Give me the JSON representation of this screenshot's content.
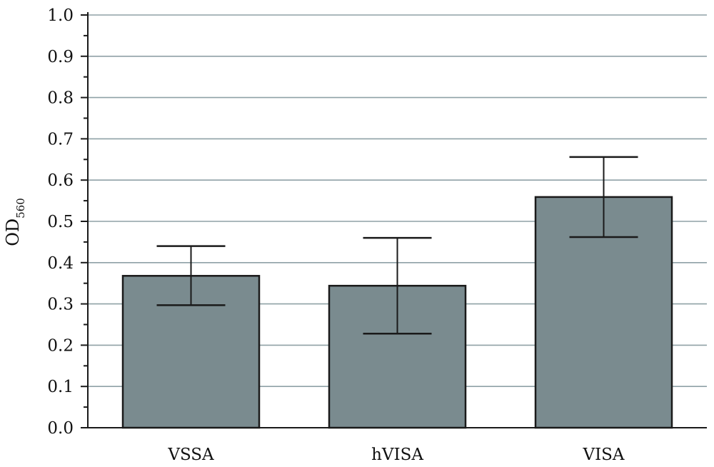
{
  "chart_data": {
    "type": "bar",
    "categories": [
      "VSSA",
      "hVISA",
      "VISA"
    ],
    "values": [
      0.368,
      0.344,
      0.559
    ],
    "error": [
      {
        "low": 0.297,
        "high": 0.44
      },
      {
        "low": 0.228,
        "high": 0.46
      },
      {
        "low": 0.462,
        "high": 0.656
      }
    ],
    "ylabel": "OD",
    "ylabel_sub": "560",
    "ylim": [
      0,
      1.0
    ],
    "yticks": [
      "0.0",
      "0.1",
      "0.2",
      "0.3",
      "0.4",
      "0.5",
      "0.6",
      "0.7",
      "0.8",
      "0.9",
      "1.0"
    ],
    "grid": true,
    "colors": {
      "bar": "#7a8b8f",
      "bar_edge": "#1a1a1a",
      "grid": "#8fa1a6",
      "axis": "#1a1a1a"
    }
  }
}
